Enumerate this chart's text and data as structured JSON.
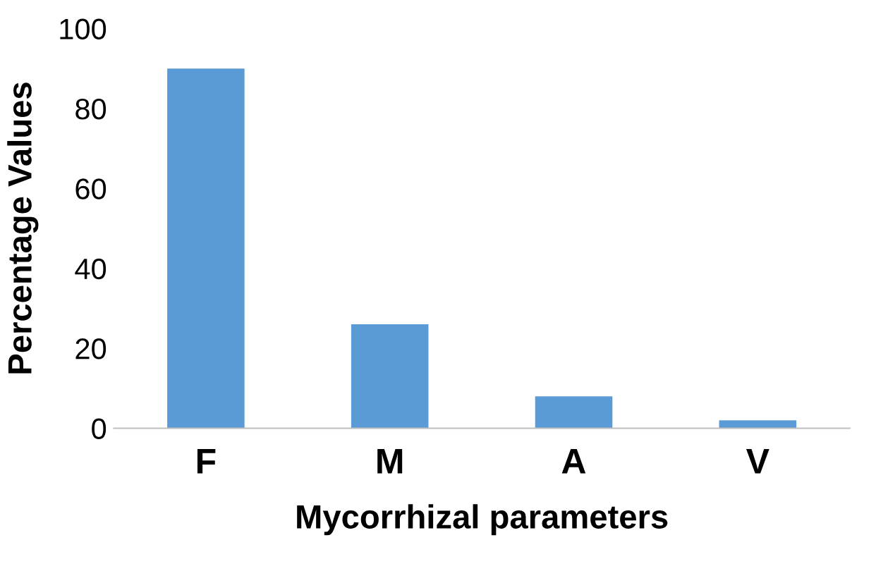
{
  "chart_data": {
    "type": "bar",
    "xlabel": "Mycorrhizal parameters",
    "ylabel": "Percentage Values",
    "categories": [
      "F",
      "M",
      "A",
      "V"
    ],
    "values": [
      90,
      26,
      8,
      2
    ],
    "color": "#5b9bd5",
    "ylim": [
      0,
      100
    ],
    "yticks": [
      0,
      20,
      40,
      60,
      80,
      100
    ],
    "grid": false,
    "legend": false
  }
}
